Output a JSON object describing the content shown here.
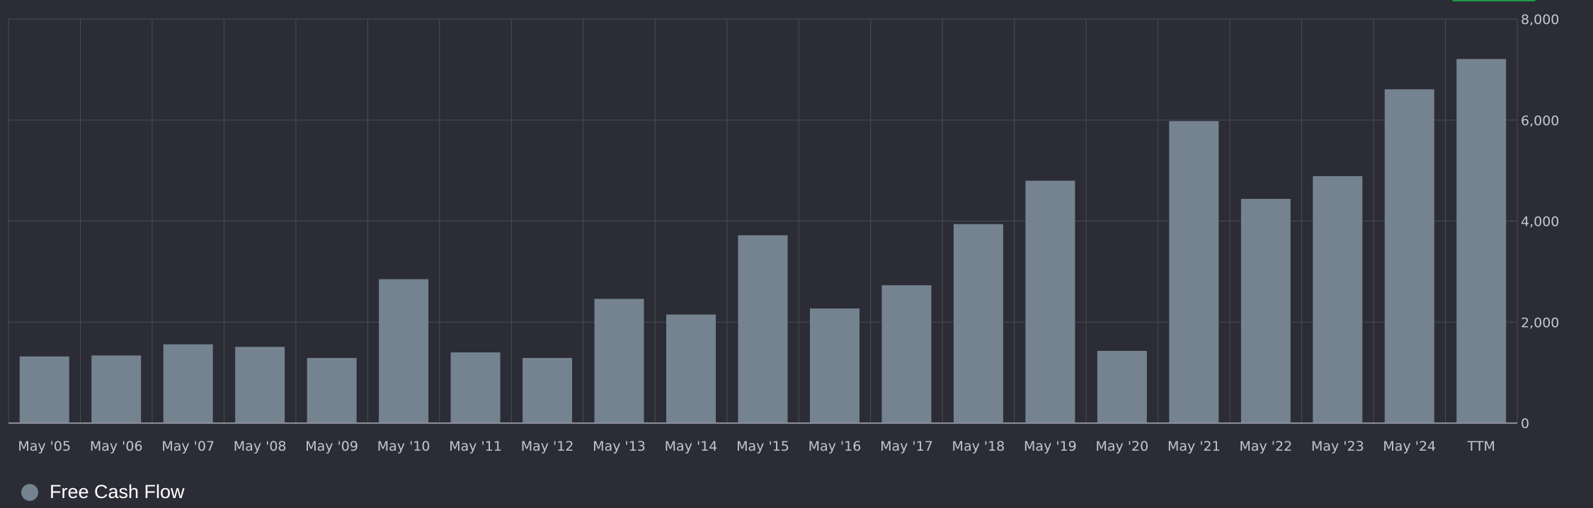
{
  "chart_data": {
    "type": "bar",
    "categories": [
      "May '05",
      "May '06",
      "May '07",
      "May '08",
      "May '09",
      "May '10",
      "May '11",
      "May '12",
      "May '13",
      "May '14",
      "May '15",
      "May '16",
      "May '17",
      "May '18",
      "May '19",
      "May '20",
      "May '21",
      "May '22",
      "May '23",
      "May '24",
      "TTM"
    ],
    "series": [
      {
        "name": "Free Cash Flow",
        "values": [
          1320,
          1340,
          1560,
          1510,
          1290,
          2850,
          1400,
          1290,
          2460,
          2150,
          3720,
          2270,
          2730,
          3940,
          4800,
          1430,
          5980,
          4440,
          4890,
          6610,
          7210
        ]
      }
    ],
    "ylim": [
      0,
      8000
    ],
    "yticks": [
      "0",
      "2,000",
      "4,000",
      "6,000",
      "8,000"
    ],
    "grid": true,
    "legend_position": "bottom-left",
    "colors": {
      "bar": "#74838f",
      "background": "#2b2c35",
      "grid": "#4a4c57",
      "badge": "#1d9a47"
    }
  }
}
